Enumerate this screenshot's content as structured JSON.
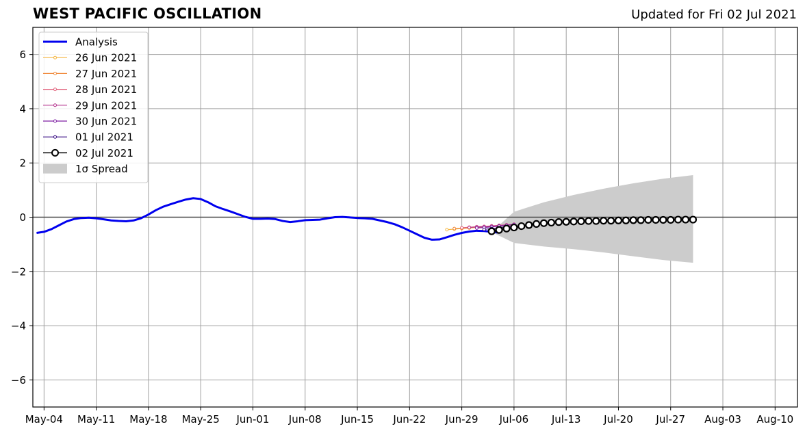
{
  "header": {
    "title": "WEST PACIFIC OSCILLATION",
    "updated": "Updated for Fri 02 Jul 2021"
  },
  "chart_data": {
    "type": "line",
    "title": "WEST PACIFIC OSCILLATION",
    "xlabel": "",
    "ylabel": "",
    "grid": true,
    "legend_position": "top-left",
    "xlim": [
      "2021-05-02T12:00",
      "2021-08-13"
    ],
    "ylim": [
      -7,
      7
    ],
    "x_ticks": [
      "May-04",
      "May-11",
      "May-18",
      "May-25",
      "Jun-01",
      "Jun-08",
      "Jun-15",
      "Jun-22",
      "Jun-29",
      "Jul-06",
      "Jul-13",
      "Jul-20",
      "Jul-27",
      "Aug-03",
      "Aug-10"
    ],
    "x_tick_dates": [
      "2021-05-04",
      "2021-05-11",
      "2021-05-18",
      "2021-05-25",
      "2021-06-01",
      "2021-06-08",
      "2021-06-15",
      "2021-06-22",
      "2021-06-29",
      "2021-07-06",
      "2021-07-13",
      "2021-07-20",
      "2021-07-27",
      "2021-08-03",
      "2021-08-10"
    ],
    "y_ticks": [
      6,
      4,
      2,
      0,
      -2,
      -4,
      -6
    ],
    "y_tick_labels": [
      "6",
      "4",
      "2",
      "0",
      "−2",
      "−4",
      "−6"
    ],
    "zero_line": 0,
    "series": [
      {
        "name": "Analysis",
        "color": "#0000ee",
        "style": "thick-line",
        "start_date": "2021-05-03",
        "values": [
          -0.58,
          -0.54,
          -0.44,
          -0.3,
          -0.16,
          -0.07,
          -0.03,
          -0.02,
          -0.04,
          -0.08,
          -0.12,
          -0.14,
          -0.15,
          -0.12,
          -0.04,
          0.1,
          0.26,
          0.39,
          0.48,
          0.57,
          0.65,
          0.7,
          0.67,
          0.55,
          0.4,
          0.3,
          0.21,
          0.11,
          0.01,
          -0.06,
          -0.06,
          -0.05,
          -0.07,
          -0.14,
          -0.18,
          -0.15,
          -0.11,
          -0.1,
          -0.09,
          -0.04,
          0.0,
          0.01,
          -0.01,
          -0.03,
          -0.04,
          -0.06,
          -0.12,
          -0.18,
          -0.26,
          -0.37,
          -0.5,
          -0.63,
          -0.76,
          -0.83,
          -0.82,
          -0.74,
          -0.65,
          -0.58,
          -0.53,
          -0.5,
          -0.51,
          -0.54,
          -0.57
        ]
      },
      {
        "name": "26 Jun 2021",
        "color": "#f5b642",
        "style": "thin-marker",
        "start_date": "2021-06-27",
        "values": [
          -0.46,
          -0.44,
          -0.42,
          -0.4,
          -0.38,
          -0.36,
          -0.34,
          -0.32,
          -0.3,
          -0.28
        ]
      },
      {
        "name": "27 Jun 2021",
        "color": "#f08a3c",
        "style": "thin-marker",
        "start_date": "2021-06-28",
        "values": [
          -0.42,
          -0.41,
          -0.39,
          -0.37,
          -0.35,
          -0.33,
          -0.31,
          -0.29,
          -0.27
        ]
      },
      {
        "name": "28 Jun 2021",
        "color": "#e0607a",
        "style": "thin-marker",
        "start_date": "2021-06-29",
        "values": [
          -0.39,
          -0.37,
          -0.35,
          -0.34,
          -0.32,
          -0.3,
          -0.28,
          -0.26
        ]
      },
      {
        "name": "29 Jun 2021",
        "color": "#b5368f",
        "style": "thin-marker",
        "start_date": "2021-06-30",
        "values": [
          -0.38,
          -0.36,
          -0.35,
          -0.33,
          -0.31,
          -0.29,
          -0.27
        ]
      },
      {
        "name": "30 Jun 2021",
        "color": "#7e1fa2",
        "style": "thin-marker",
        "start_date": "2021-07-01",
        "values": [
          -0.4,
          -0.38,
          -0.36,
          -0.33,
          -0.3,
          -0.27
        ]
      },
      {
        "name": "01 Jul 2021",
        "color": "#3a0f85",
        "style": "thin-marker",
        "start_date": "2021-07-02",
        "values": [
          -0.45,
          -0.42,
          -0.39,
          -0.35,
          -0.31
        ]
      },
      {
        "name": "02 Jul 2021",
        "color": "#000000",
        "style": "open-circle",
        "start_date": "2021-07-03",
        "values": [
          -0.52,
          -0.47,
          -0.42,
          -0.38,
          -0.33,
          -0.29,
          -0.25,
          -0.22,
          -0.2,
          -0.18,
          -0.17,
          -0.16,
          -0.15,
          -0.14,
          -0.14,
          -0.13,
          -0.13,
          -0.12,
          -0.12,
          -0.11,
          -0.11,
          -0.1,
          -0.1,
          -0.1,
          -0.1,
          -0.09,
          -0.09,
          -0.09
        ]
      }
    ],
    "spread": {
      "name": "1σ Spread",
      "color": "#cccccc",
      "dates": [
        "2021-07-03",
        "2021-07-06",
        "2021-07-10",
        "2021-07-14",
        "2021-07-18",
        "2021-07-22",
        "2021-07-26",
        "2021-07-30"
      ],
      "upper": [
        -0.55,
        0.2,
        0.55,
        0.82,
        1.05,
        1.25,
        1.42,
        1.55
      ],
      "lower": [
        -0.55,
        -0.95,
        -1.08,
        -1.18,
        -1.3,
        -1.44,
        -1.58,
        -1.68
      ]
    },
    "legend": [
      "Analysis",
      "26 Jun 2021",
      "27 Jun 2021",
      "28 Jun 2021",
      "29 Jun 2021",
      "30 Jun 2021",
      "01 Jul 2021",
      "02 Jul 2021",
      "1σ Spread"
    ]
  }
}
